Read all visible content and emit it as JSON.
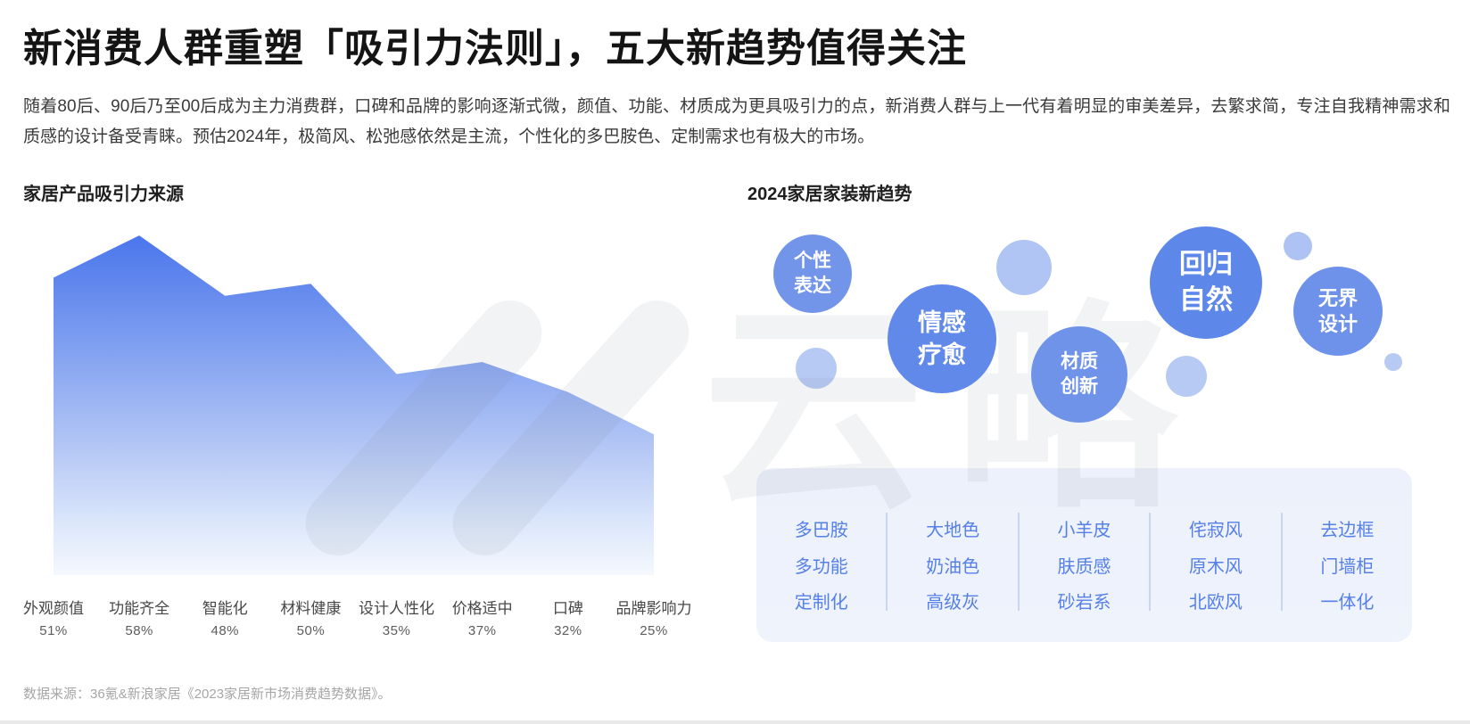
{
  "page": {
    "title": "新消费人群重塑「吸引力法则」，五大新趋势值得关注",
    "description": "随着80后、90后乃至00后成为主力消费群，口碑和品牌的影响逐渐式微，颜值、功能、材质成为更具吸引力的点，新消费人群与上一代有着明显的审美差异，去繁求简，专注自我精神需求和质感的设计备受青睐。预估2024年，极简风、松弛感依然是主流，个性化的多巴胺色、定制需求也有极大的市场。",
    "footer_source": "数据来源：36氪&新浪家居《2023家居新市场消费趋势数据》。",
    "watermark": "云略"
  },
  "chart_data": {
    "type": "area",
    "title": "家居产品吸引力来源",
    "categories": [
      "外观颜值",
      "功能齐全",
      "智能化",
      "材料健康",
      "设计人性化",
      "价格适中",
      "口碑",
      "品牌影响力"
    ],
    "values": [
      51,
      58,
      48,
      50,
      35,
      37,
      32,
      25
    ],
    "value_labels": [
      "51%",
      "58%",
      "48%",
      "50%",
      "35%",
      "37%",
      "32%",
      "25%"
    ],
    "unit": "%",
    "ylim": [
      0,
      65
    ],
    "grid": false,
    "legend": false,
    "fill_gradient_top": "#4974ec",
    "fill_gradient_bottom": "#f6f9fe"
  },
  "trends": {
    "title": "2024家居家装新趋势",
    "bubbles": [
      {
        "lines": [
          "个性",
          "表达"
        ]
      },
      {
        "lines": [
          "情感",
          "疗愈"
        ]
      },
      {
        "lines": [
          "材质",
          "创新"
        ]
      },
      {
        "lines": [
          "回归",
          "自然"
        ]
      },
      {
        "lines": [
          "无界",
          "设计"
        ]
      }
    ],
    "panel_columns": [
      [
        "多巴胺",
        "多功能",
        "定制化"
      ],
      [
        "大地色",
        "奶油色",
        "高级灰"
      ],
      [
        "小羊皮",
        "肤质感",
        "砂岩系"
      ],
      [
        "侘寂风",
        "原木风",
        "北欧风"
      ],
      [
        "去边框",
        "门墙柜",
        "一体化"
      ]
    ]
  },
  "colors": {
    "bubble_dark_blue": "#5d87e8",
    "bubble_mid_blue": "#6e90e9",
    "bubble_light_blue": "#7295ea",
    "decor_circle_blue": "#b5c9f4",
    "panel_background": "#edf2fb",
    "panel_text_blue": "#5680e8",
    "panel_divider": "#c9d6f1",
    "area_top_blue": "#4974ec",
    "title_text": "#141414",
    "body_text": "#3a3a3a",
    "footer_text": "#a6a6a6"
  }
}
